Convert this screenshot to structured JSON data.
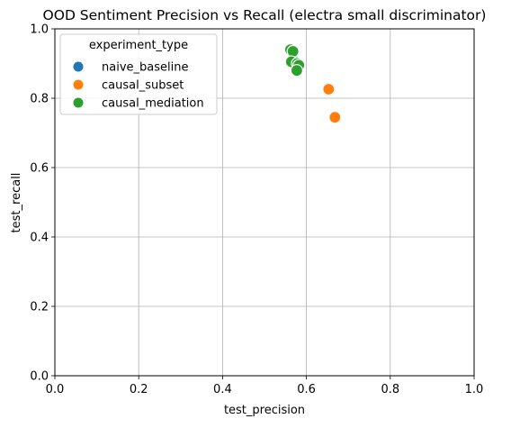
{
  "chart_data": {
    "type": "scatter",
    "title": "OOD Sentiment Precision vs Recall (electra small discriminator)",
    "xlabel": "test_precision",
    "ylabel": "test_recall",
    "xlim": [
      0.0,
      1.0
    ],
    "ylim": [
      0.0,
      1.0
    ],
    "xticks": [
      "0.0",
      "0.2",
      "0.4",
      "0.6",
      "0.8",
      "1.0"
    ],
    "yticks": [
      "0.0",
      "0.2",
      "0.4",
      "0.6",
      "0.8",
      "1.0"
    ],
    "grid": true,
    "legend": {
      "title": "experiment_type",
      "placement": "upper-left"
    },
    "series": [
      {
        "name": "naive_baseline",
        "color": "#1f77b4",
        "points": [
          {
            "x": 0.563,
            "y": 0.903
          },
          {
            "x": 0.573,
            "y": 0.905
          },
          {
            "x": 0.578,
            "y": 0.898
          }
        ]
      },
      {
        "name": "causal_subset",
        "color": "#ff7f0e",
        "points": [
          {
            "x": 0.653,
            "y": 0.826
          },
          {
            "x": 0.668,
            "y": 0.745
          }
        ]
      },
      {
        "name": "causal_mediation",
        "color": "#2ca02c",
        "points": [
          {
            "x": 0.562,
            "y": 0.94
          },
          {
            "x": 0.568,
            "y": 0.935
          },
          {
            "x": 0.564,
            "y": 0.905
          },
          {
            "x": 0.578,
            "y": 0.9
          },
          {
            "x": 0.582,
            "y": 0.895
          },
          {
            "x": 0.577,
            "y": 0.88
          }
        ]
      }
    ]
  }
}
